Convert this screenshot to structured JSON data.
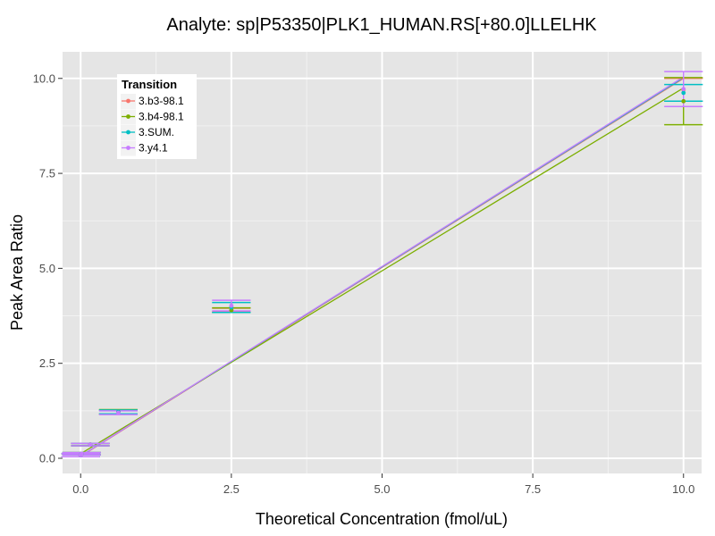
{
  "chart_data": {
    "type": "scatter",
    "title": "Analyte: sp|P53350|PLK1_HUMAN.RS[+80.0]LLELHK",
    "xlabel": "Theoretical Concentration (fmol/uL)",
    "ylabel": "Peak Area Ratio",
    "xlim": [
      -0.3,
      10.3
    ],
    "ylim": [
      -0.4,
      10.7
    ],
    "x_ticks": [
      0,
      2.5,
      5,
      7.5,
      10
    ],
    "x_tick_labels": [
      "0.0",
      "2.5",
      "5.0",
      "7.5",
      "10.0"
    ],
    "y_ticks": [
      0,
      2.5,
      5,
      7.5,
      10
    ],
    "y_tick_labels": [
      "0.0",
      "2.5",
      "5.0",
      "7.5",
      "10.0"
    ],
    "grid": true,
    "legend": {
      "title": "Transition",
      "position": "top-left"
    },
    "series": [
      {
        "name": "3.b3-98.1",
        "color": "#F8766D",
        "points": [
          {
            "x": 0.0,
            "y": 0.08,
            "err": 0.04
          },
          {
            "x": 0.016,
            "y": 0.12,
            "err": 0.03
          },
          {
            "x": 0.16,
            "y": 0.36,
            "err": 0.03
          },
          {
            "x": 0.625,
            "y": 1.22,
            "err": 0.05
          },
          {
            "x": 2.5,
            "y": 3.9,
            "err": 0.05
          },
          {
            "x": 10.0,
            "y": 9.7,
            "err": 0.3
          }
        ],
        "fit": [
          [
            0,
            0.05
          ],
          [
            10,
            10.0
          ]
        ]
      },
      {
        "name": "3.b4-98.1",
        "color": "#7CAE00",
        "points": [
          {
            "x": 0.0,
            "y": 0.08,
            "err": 0.04
          },
          {
            "x": 0.016,
            "y": 0.12,
            "err": 0.03
          },
          {
            "x": 0.16,
            "y": 0.36,
            "err": 0.03
          },
          {
            "x": 0.625,
            "y": 1.22,
            "err": 0.06
          },
          {
            "x": 2.5,
            "y": 3.9,
            "err": 0.06
          },
          {
            "x": 10.0,
            "y": 9.4,
            "err": 0.62
          }
        ],
        "fit": [
          [
            0,
            0.12
          ],
          [
            10,
            9.75
          ]
        ]
      },
      {
        "name": "3.SUM.",
        "color": "#00BFC4",
        "points": [
          {
            "x": 0.0,
            "y": 0.08,
            "err": 0.04
          },
          {
            "x": 0.016,
            "y": 0.12,
            "err": 0.03
          },
          {
            "x": 0.16,
            "y": 0.36,
            "err": 0.03
          },
          {
            "x": 0.625,
            "y": 1.22,
            "err": 0.05
          },
          {
            "x": 2.5,
            "y": 3.97,
            "err": 0.13
          },
          {
            "x": 10.0,
            "y": 9.62,
            "err": 0.22
          }
        ],
        "fit": [
          [
            0,
            0.06
          ],
          [
            10,
            10.02
          ]
        ]
      },
      {
        "name": "3.y4.1",
        "color": "#C77CFF",
        "points": [
          {
            "x": 0.0,
            "y": 0.08,
            "err": 0.04
          },
          {
            "x": 0.016,
            "y": 0.12,
            "err": 0.03
          },
          {
            "x": 0.16,
            "y": 0.36,
            "err": 0.03
          },
          {
            "x": 0.625,
            "y": 1.2,
            "err": 0.05
          },
          {
            "x": 2.5,
            "y": 4.02,
            "err": 0.14
          },
          {
            "x": 10.0,
            "y": 9.72,
            "err": 0.46
          }
        ],
        "fit": [
          [
            0,
            0.06
          ],
          [
            10,
            10.04
          ]
        ]
      }
    ]
  }
}
